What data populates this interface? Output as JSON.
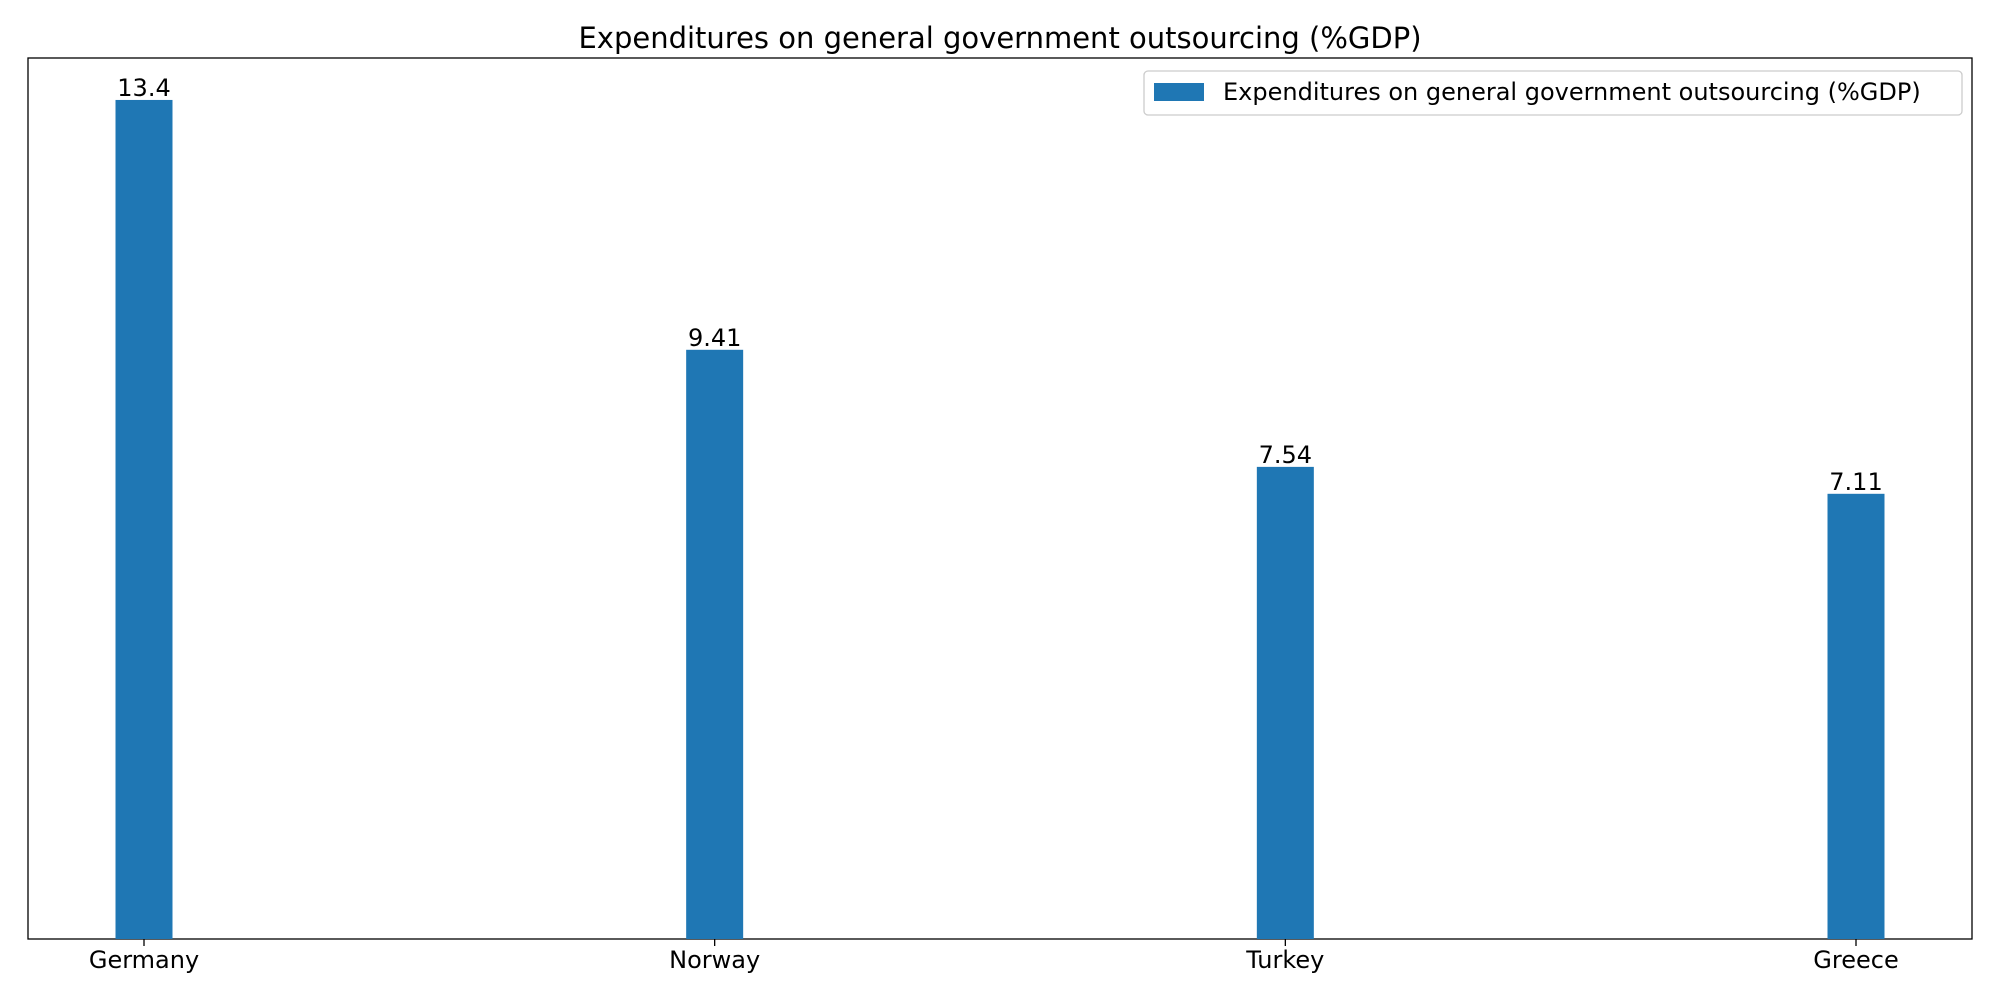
{
  "chart_data": {
    "type": "bar",
    "title": "Expenditures on general government outsourcing (%GDP)",
    "categories": [
      "Germany",
      "Norway",
      "Turkey",
      "Greece"
    ],
    "series": [
      {
        "name": "Expenditures on general government outsourcing (%GDP)",
        "values": [
          13.4,
          9.41,
          7.54,
          7.11
        ],
        "value_labels": [
          "13.4",
          "9.41",
          "7.54",
          "7.11"
        ],
        "color": "#1f77b4"
      }
    ],
    "xlabel": "",
    "ylabel": "",
    "ylim": [
      0,
      14.07
    ],
    "y_axis_visible": false,
    "grid": false,
    "legend": "top-right"
  }
}
